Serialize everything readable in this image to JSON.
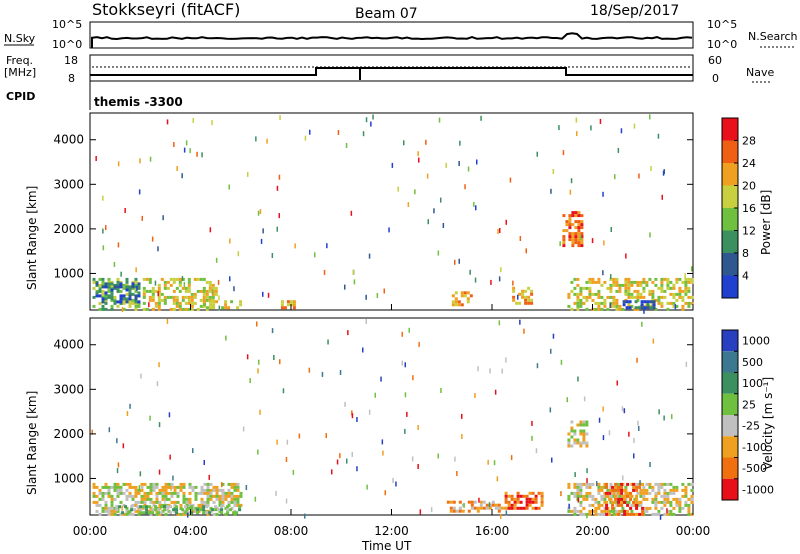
{
  "header": {
    "station": "Stokkseyri (fitACF)",
    "beam": "Beam 07",
    "date": "18/Sep/2017"
  },
  "side_labels": {
    "nsky": "N.Sky",
    "nsearch": "N.Search",
    "freq_line1": "Freq.",
    "freq_line2": "[MHz]",
    "nave": "Nave",
    "cpid": "CPID",
    "cpid_value": "themis -3300"
  },
  "noise_panel": {
    "left_ticks": [
      "10^5",
      "10^0"
    ],
    "right_ticks": [
      "10^5",
      "10^0"
    ]
  },
  "freq_panel": {
    "left_ticks": [
      "18",
      "8"
    ],
    "right_ticks": [
      "60",
      "0"
    ]
  },
  "chart_data": [
    {
      "type": "heatmap",
      "id": "power",
      "ylabel": "Slant Range [km]",
      "yticks": [
        "1000",
        "2000",
        "3000",
        "4000"
      ],
      "ylim": [
        180,
        4600
      ],
      "colorbar_label": "Power [dB]",
      "colorbar_ticks": [
        "28",
        "24",
        "20",
        "16",
        "12",
        "8",
        "4"
      ],
      "colorbar_colors": [
        "#e8101a",
        "#f06014",
        "#f0a020",
        "#c8d040",
        "#70c040",
        "#3c9060",
        "#305890",
        "#2040d0"
      ],
      "regions": [
        {
          "x0": 0.1,
          "x1": 2.0,
          "y0": 200,
          "y1": 900,
          "level": 4
        },
        {
          "x0": 0.1,
          "x1": 1.9,
          "y0": 350,
          "y1": 800,
          "level": 6
        },
        {
          "x0": 2.1,
          "x1": 5.0,
          "y0": 200,
          "y1": 900,
          "level": 3
        },
        {
          "x0": 4.5,
          "x1": 6.0,
          "y0": 200,
          "y1": 400,
          "level": 3
        },
        {
          "x0": 7.6,
          "x1": 8.1,
          "y0": 200,
          "y1": 400,
          "level": 2
        },
        {
          "x0": 14.4,
          "x1": 15.2,
          "y0": 300,
          "y1": 600,
          "level": 2
        },
        {
          "x0": 16.8,
          "x1": 17.6,
          "y0": 350,
          "y1": 700,
          "level": 2
        },
        {
          "x0": 18.8,
          "x1": 19.6,
          "y0": 1600,
          "y1": 2400,
          "level": 1
        },
        {
          "x0": 19.0,
          "x1": 24.0,
          "y0": 200,
          "y1": 900,
          "level": 3
        },
        {
          "x0": 21.2,
          "x1": 22.4,
          "y0": 200,
          "y1": 400,
          "level": 6
        }
      ]
    },
    {
      "type": "heatmap",
      "id": "velocity",
      "ylabel": "Slant Range [km]",
      "yticks": [
        "1000",
        "2000",
        "3000",
        "4000"
      ],
      "ylim": [
        180,
        4600
      ],
      "xlabel": "Time UT",
      "xticks": [
        "00:00",
        "04:00",
        "08:00",
        "12:00",
        "16:00",
        "20:00",
        "00:00"
      ],
      "colorbar_label": "Velocity [m s⁻¹]",
      "colorbar_ticks": [
        "1000",
        "500",
        "100",
        "25",
        "-25",
        "-100",
        "-500",
        "-1000"
      ],
      "colorbar_colors": [
        "#2840c0",
        "#3c7890",
        "#3c9060",
        "#70c040",
        "#c0c0c0",
        "#f0a020",
        "#f07010",
        "#e81018"
      ],
      "regions": [
        {
          "x0": 0.1,
          "x1": 6.0,
          "y0": 200,
          "y1": 900,
          "level": 4
        },
        {
          "x0": 1.0,
          "x1": 6.0,
          "y0": 200,
          "y1": 400,
          "level": 3
        },
        {
          "x0": 14.2,
          "x1": 16.5,
          "y0": 250,
          "y1": 500,
          "level": 5
        },
        {
          "x0": 16.5,
          "x1": 18.0,
          "y0": 300,
          "y1": 700,
          "level": 6
        },
        {
          "x0": 19.0,
          "x1": 19.8,
          "y0": 1700,
          "y1": 2300,
          "level": 4
        },
        {
          "x0": 19.0,
          "x1": 24.0,
          "y0": 200,
          "y1": 900,
          "level": 4
        },
        {
          "x0": 20.5,
          "x1": 22.0,
          "y0": 200,
          "y1": 900,
          "level": 6
        }
      ]
    }
  ]
}
